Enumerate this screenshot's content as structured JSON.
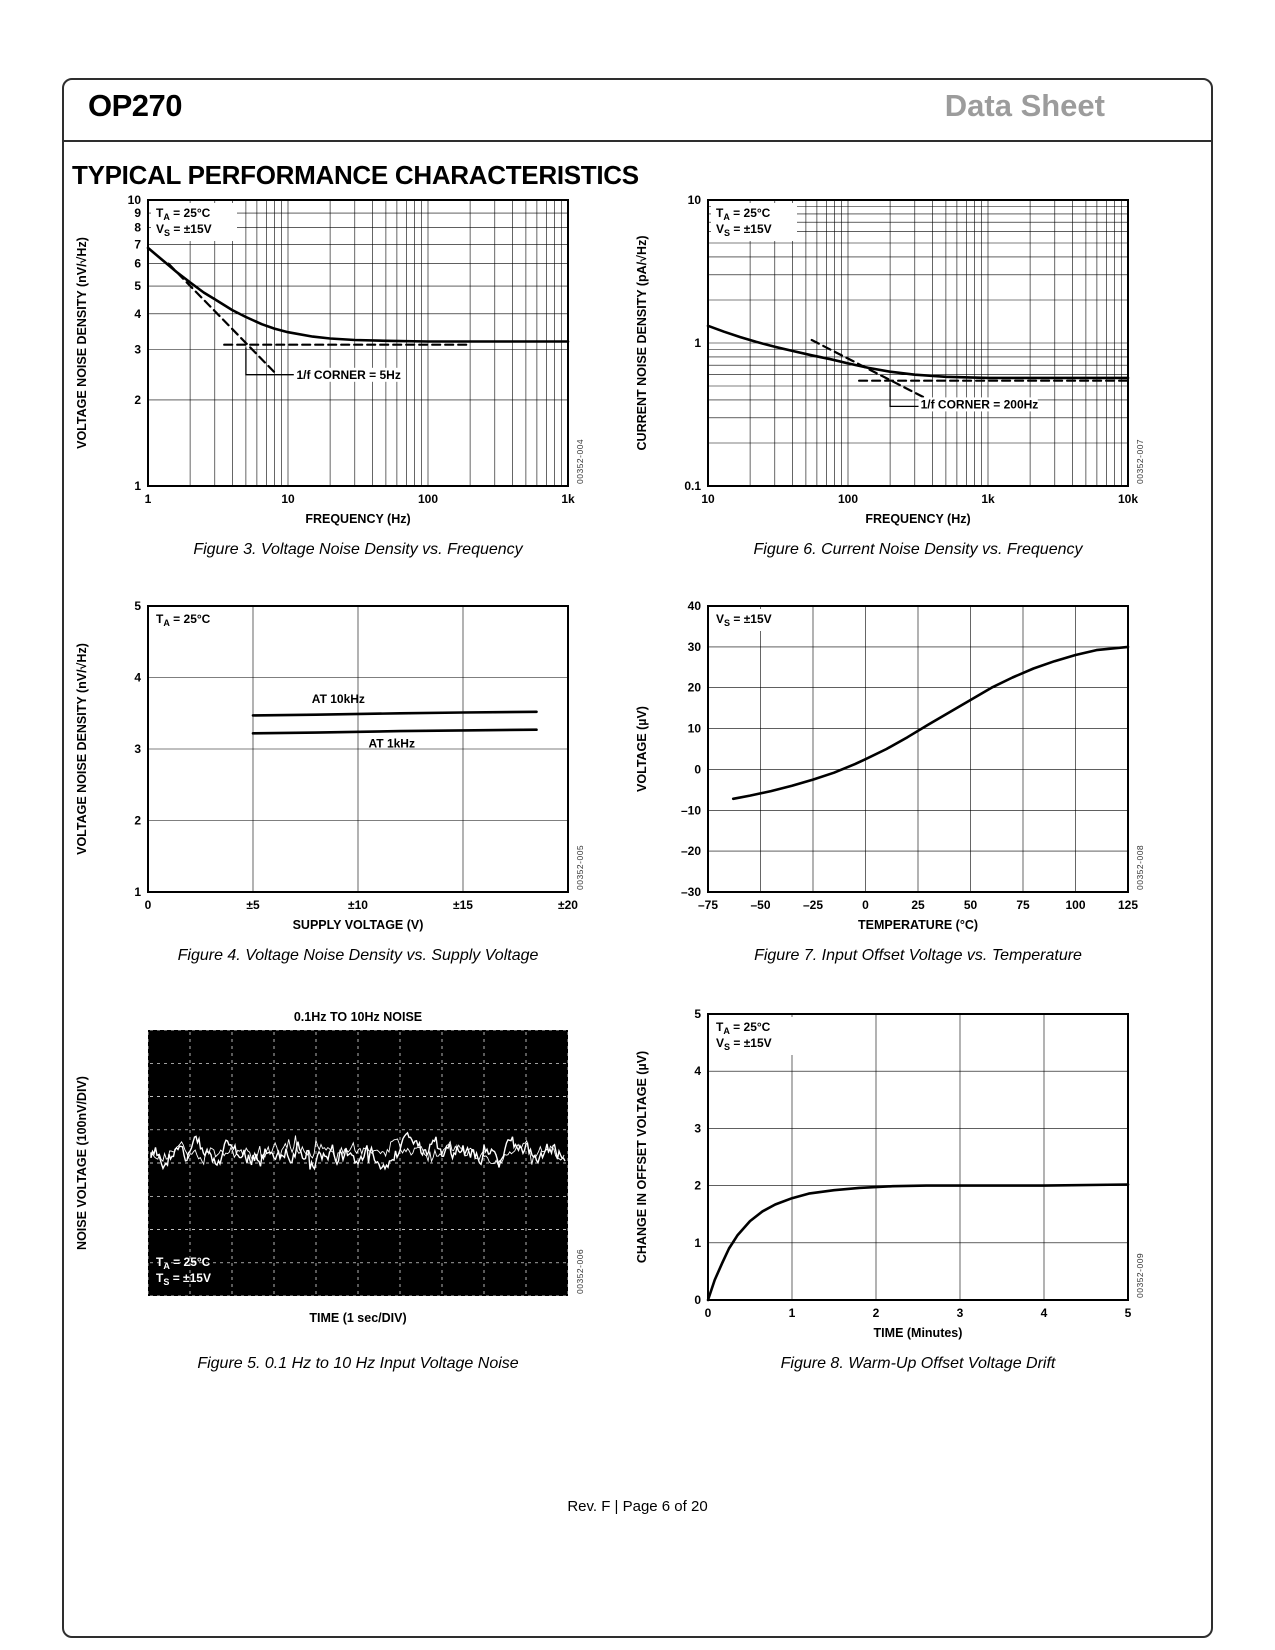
{
  "header": {
    "product": "OP270",
    "doc_type": "Data Sheet"
  },
  "section_title": "TYPICAL PERFORMANCE CHARACTERISTICS",
  "footer": {
    "text": "Rev. F | Page 6 of 20"
  },
  "chart_data": [
    {
      "id": "fig3",
      "type": "line",
      "caption": "Figure 3. Voltage Noise Density vs. Frequency",
      "part_code": "00352-004",
      "xlabel": "FREQUENCY (Hz)",
      "ylabel": "VOLTAGE NOISE DENSITY (nV/√Hz)",
      "xscale": "log",
      "yscale": "log",
      "xmin": 1,
      "xmax": 1000,
      "ymin": 1,
      "ymax": 10,
      "xticks": [
        [
          1,
          "1"
        ],
        [
          10,
          "10"
        ],
        [
          100,
          "100"
        ],
        [
          1000,
          "1k"
        ]
      ],
      "yticks": [
        [
          1,
          "1"
        ],
        [
          2,
          "2"
        ],
        [
          3,
          "3"
        ],
        [
          4,
          "4"
        ],
        [
          5,
          "5"
        ],
        [
          6,
          "6"
        ],
        [
          7,
          "7"
        ],
        [
          8,
          "8"
        ],
        [
          9,
          "9"
        ],
        [
          10,
          "10"
        ]
      ],
      "notes": [
        {
          "pre": "T",
          "sub": "A",
          "post": " = 25°C"
        },
        {
          "pre": "V",
          "sub": "S",
          "post": " = ±15V"
        }
      ],
      "series": [
        {
          "name": "voltage noise density",
          "style": "solid",
          "points": [
            [
              1,
              6.8
            ],
            [
              1.3,
              6.1
            ],
            [
              1.6,
              5.6
            ],
            [
              2,
              5.15
            ],
            [
              2.5,
              4.75
            ],
            [
              3,
              4.5
            ],
            [
              4,
              4.12
            ],
            [
              5,
              3.9
            ],
            [
              6.5,
              3.68
            ],
            [
              8,
              3.55
            ],
            [
              10,
              3.45
            ],
            [
              15,
              3.33
            ],
            [
              20,
              3.28
            ],
            [
              30,
              3.24
            ],
            [
              50,
              3.22
            ],
            [
              100,
              3.2
            ],
            [
              300,
              3.2
            ],
            [
              1000,
              3.2
            ]
          ]
        },
        {
          "name": "1/f asymptote",
          "style": "dashed",
          "points": [
            [
              1.4,
              5.99
            ],
            [
              8,
              2.5
            ]
          ]
        },
        {
          "name": "white noise asymptote",
          "style": "dashed",
          "points": [
            [
              3.5,
              3.12
            ],
            [
              200,
              3.12
            ]
          ]
        }
      ],
      "callout": {
        "text": "1/f CORNER = 5Hz",
        "x": 11.5,
        "y": 2.37,
        "leader": [
          [
            5,
            3.05
          ],
          [
            5,
            2.45
          ],
          [
            11,
            2.45
          ]
        ]
      }
    },
    {
      "id": "fig6",
      "type": "line",
      "caption": "Figure 6. Current Noise Density vs. Frequency",
      "part_code": "00352-007",
      "xlabel": "FREQUENCY (Hz)",
      "ylabel": "CURRENT NOISE DENSITY (pA/√Hz)",
      "xscale": "log",
      "yscale": "log",
      "xmin": 10,
      "xmax": 10000,
      "ymin": 0.1,
      "ymax": 10,
      "xticks": [
        [
          10,
          "10"
        ],
        [
          100,
          "100"
        ],
        [
          1000,
          "1k"
        ],
        [
          10000,
          "10k"
        ]
      ],
      "yticks": [
        [
          0.1,
          "0.1"
        ],
        [
          1,
          "1"
        ],
        [
          10,
          "10"
        ]
      ],
      "notes": [
        {
          "pre": "T",
          "sub": "A",
          "post": " = 25°C"
        },
        {
          "pre": "V",
          "sub": "S",
          "post": " = ±15V"
        }
      ],
      "series": [
        {
          "name": "current noise density",
          "style": "solid",
          "points": [
            [
              10,
              1.32
            ],
            [
              13,
              1.2
            ],
            [
              17,
              1.1
            ],
            [
              22,
              1.02
            ],
            [
              30,
              0.94
            ],
            [
              40,
              0.88
            ],
            [
              55,
              0.82
            ],
            [
              75,
              0.77
            ],
            [
              100,
              0.72
            ],
            [
              140,
              0.67
            ],
            [
              200,
              0.63
            ],
            [
              300,
              0.6
            ],
            [
              500,
              0.58
            ],
            [
              1000,
              0.57
            ],
            [
              3000,
              0.57
            ],
            [
              10000,
              0.57
            ]
          ]
        },
        {
          "name": "1/f asymptote",
          "style": "dashed",
          "points": [
            [
              55,
              1.05
            ],
            [
              500,
              0.348
            ]
          ]
        },
        {
          "name": "white noise asymptote",
          "style": "dashed",
          "points": [
            [
              120,
              0.545
            ],
            [
              10000,
              0.545
            ]
          ]
        }
      ],
      "callout": {
        "text": "1/f CORNER = 200Hz",
        "x": 330,
        "y": 0.349,
        "leader": [
          [
            200,
            0.53
          ],
          [
            200,
            0.36
          ],
          [
            320,
            0.36
          ]
        ]
      }
    },
    {
      "id": "fig4",
      "type": "line",
      "caption": "Figure 4. Voltage Noise Density vs. Supply Voltage",
      "part_code": "00352-005",
      "xlabel": "SUPPLY VOLTAGE (V)",
      "ylabel": "VOLTAGE NOISE DENSITY (nV/√Hz)",
      "xscale": "linear",
      "yscale": "linear",
      "xmin": 0,
      "xmax": 20,
      "ymin": 1,
      "ymax": 5,
      "xticks": [
        [
          0,
          "0"
        ],
        [
          5,
          "±5"
        ],
        [
          10,
          "±10"
        ],
        [
          15,
          "±15"
        ],
        [
          20,
          "±20"
        ]
      ],
      "yticks": [
        [
          1,
          "1"
        ],
        [
          2,
          "2"
        ],
        [
          3,
          "3"
        ],
        [
          4,
          "4"
        ],
        [
          5,
          "5"
        ]
      ],
      "notes": [
        {
          "pre": "T",
          "sub": "A",
          "post": " = 25°C"
        }
      ],
      "series": [
        {
          "name": "at 10kHz",
          "style": "solid",
          "points": [
            [
              5,
              3.47
            ],
            [
              8,
              3.48
            ],
            [
              12,
              3.5
            ],
            [
              15,
              3.51
            ],
            [
              18.5,
              3.52
            ]
          ]
        },
        {
          "name": "at 1kHz",
          "style": "solid",
          "points": [
            [
              5,
              3.22
            ],
            [
              8,
              3.23
            ],
            [
              12,
              3.25
            ],
            [
              15,
              3.26
            ],
            [
              18.5,
              3.27
            ]
          ]
        }
      ],
      "labels": [
        {
          "text": "AT 10kHz",
          "x": 7.8,
          "y": 3.64
        },
        {
          "text": "AT 1kHz",
          "x": 10.5,
          "y": 3.02
        }
      ]
    },
    {
      "id": "fig7",
      "type": "line",
      "caption": "Figure 7. Input Offset Voltage vs. Temperature",
      "part_code": "00352-008",
      "xlabel": "TEMPERATURE (°C)",
      "ylabel": "VOLTAGE (µV)",
      "xscale": "linear",
      "yscale": "linear",
      "xmin": -75,
      "xmax": 125,
      "ymin": -30,
      "ymax": 40,
      "xticks": [
        [
          -75,
          "–75"
        ],
        [
          -50,
          "–50"
        ],
        [
          -25,
          "–25"
        ],
        [
          0,
          "0"
        ],
        [
          25,
          "25"
        ],
        [
          50,
          "50"
        ],
        [
          75,
          "75"
        ],
        [
          100,
          "100"
        ],
        [
          125,
          "125"
        ]
      ],
      "yticks": [
        [
          -30,
          "–30"
        ],
        [
          -20,
          "–20"
        ],
        [
          -10,
          "–10"
        ],
        [
          0,
          "0"
        ],
        [
          10,
          "10"
        ],
        [
          20,
          "20"
        ],
        [
          30,
          "30"
        ],
        [
          40,
          "40"
        ]
      ],
      "notes": [
        {
          "pre": "V",
          "sub": "S",
          "post": " = ±15V"
        }
      ],
      "series": [
        {
          "name": "input offset voltage",
          "style": "solid",
          "points": [
            [
              -63,
              -7.2
            ],
            [
              -55,
              -6.4
            ],
            [
              -45,
              -5.3
            ],
            [
              -35,
              -4
            ],
            [
              -25,
              -2.5
            ],
            [
              -15,
              -0.8
            ],
            [
              -5,
              1.3
            ],
            [
              0,
              2.5
            ],
            [
              10,
              5
            ],
            [
              20,
              7.9
            ],
            [
              30,
              11
            ],
            [
              40,
              14
            ],
            [
              50,
              17
            ],
            [
              60,
              20
            ],
            [
              70,
              22.5
            ],
            [
              80,
              24.7
            ],
            [
              90,
              26.5
            ],
            [
              100,
              28
            ],
            [
              110,
              29.2
            ],
            [
              125,
              30
            ]
          ]
        }
      ]
    },
    {
      "id": "fig5",
      "type": "scope",
      "caption": "Figure 5. 0.1 Hz to 10 Hz Input Voltage Noise",
      "part_code": "00352-006",
      "title": "0.1Hz TO 10Hz NOISE",
      "xlabel": "TIME (1 sec/DIV)",
      "ylabel": "NOISE VOLTAGE (100nV/DIV)",
      "divisions": {
        "x": 10,
        "y": 8
      },
      "notes": [
        {
          "pre": "T",
          "sub": "A",
          "post": " = 25°C"
        },
        {
          "pre": "T",
          "sub": "S",
          "post": " = ±15V"
        }
      ]
    },
    {
      "id": "fig8",
      "type": "line",
      "caption": "Figure 8. Warm-Up Offset Voltage Drift",
      "part_code": "00352-009",
      "xlabel": "TIME (Minutes)",
      "ylabel": "CHANGE IN OFFSET VOLTAGE (µV)",
      "xscale": "linear",
      "yscale": "linear",
      "xmin": 0,
      "xmax": 5,
      "ymin": 0,
      "ymax": 5,
      "xticks": [
        [
          0,
          "0"
        ],
        [
          1,
          "1"
        ],
        [
          2,
          "2"
        ],
        [
          3,
          "3"
        ],
        [
          4,
          "4"
        ],
        [
          5,
          "5"
        ]
      ],
      "yticks": [
        [
          0,
          "0"
        ],
        [
          1,
          "1"
        ],
        [
          2,
          "2"
        ],
        [
          3,
          "3"
        ],
        [
          4,
          "4"
        ],
        [
          5,
          "5"
        ]
      ],
      "notes": [
        {
          "pre": "T",
          "sub": "A",
          "post": " = 25°C"
        },
        {
          "pre": "V",
          "sub": "S",
          "post": " = ±15V"
        }
      ],
      "series": [
        {
          "name": "offset drift",
          "style": "solid",
          "points": [
            [
              0,
              0
            ],
            [
              0.08,
              0.35
            ],
            [
              0.17,
              0.65
            ],
            [
              0.25,
              0.9
            ],
            [
              0.35,
              1.13
            ],
            [
              0.5,
              1.38
            ],
            [
              0.65,
              1.55
            ],
            [
              0.8,
              1.67
            ],
            [
              1,
              1.78
            ],
            [
              1.2,
              1.86
            ],
            [
              1.5,
              1.92
            ],
            [
              1.8,
              1.96
            ],
            [
              2.2,
              1.99
            ],
            [
              2.6,
              2
            ],
            [
              3,
              2
            ],
            [
              4,
              2
            ],
            [
              5,
              2.02
            ]
          ]
        }
      ]
    }
  ]
}
